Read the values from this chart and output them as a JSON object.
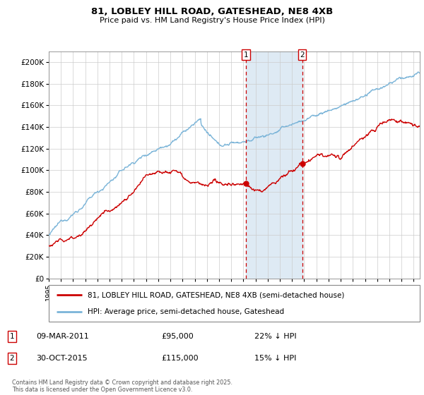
{
  "title": "81, LOBLEY HILL ROAD, GATESHEAD, NE8 4XB",
  "subtitle": "Price paid vs. HM Land Registry's House Price Index (HPI)",
  "yticks": [
    0,
    20000,
    40000,
    60000,
    80000,
    100000,
    120000,
    140000,
    160000,
    180000,
    200000
  ],
  "ytick_labels": [
    "£0",
    "£20K",
    "£40K",
    "£60K",
    "£80K",
    "£100K",
    "£120K",
    "£140K",
    "£160K",
    "£180K",
    "£200K"
  ],
  "xlim_start": 1995.0,
  "xlim_end": 2025.5,
  "ylim_min": 0,
  "ylim_max": 210000,
  "hpi_color": "#7ab4d8",
  "price_color": "#cc0000",
  "shade_color": "#deeaf4",
  "vline_color": "#cc0000",
  "marker1_x": 2011.19,
  "marker2_x": 2015.83,
  "marker1_price": 95000,
  "marker2_price": 115000,
  "sale1_date": "09-MAR-2011",
  "sale1_amount": "£95,000",
  "sale1_hpi": "22% ↓ HPI",
  "sale2_date": "30-OCT-2015",
  "sale2_amount": "£115,000",
  "sale2_hpi": "15% ↓ HPI",
  "legend1": "81, LOBLEY HILL ROAD, GATESHEAD, NE8 4XB (semi-detached house)",
  "legend2": "HPI: Average price, semi-detached house, Gateshead",
  "footnote": "Contains HM Land Registry data © Crown copyright and database right 2025.\nThis data is licensed under the Open Government Licence v3.0."
}
